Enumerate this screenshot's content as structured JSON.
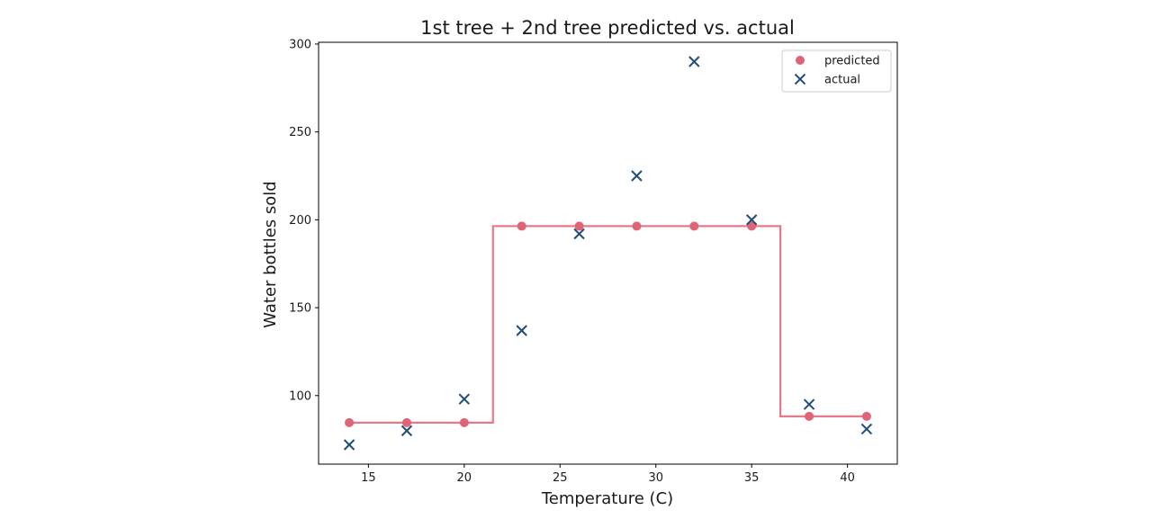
{
  "chart_data": {
    "type": "scatter",
    "title": "1st tree + 2nd tree predicted vs. actual",
    "xlabel": "Temperature (C)",
    "ylabel": "Water bottles sold",
    "xlim": [
      12.4,
      42.6
    ],
    "ylim": [
      61,
      301
    ],
    "x_ticks": [
      15,
      20,
      25,
      30,
      35,
      40
    ],
    "y_ticks": [
      100,
      150,
      200,
      250,
      300
    ],
    "grid": false,
    "legend_position": "top-right",
    "colors": {
      "predicted": "#e06377",
      "actual": "#1f4e79"
    },
    "series": [
      {
        "name": "predicted",
        "marker": "circle",
        "x": [
          14,
          17,
          20,
          23,
          26,
          29,
          32,
          35,
          38,
          41
        ],
        "y": [
          84.6,
          84.6,
          84.6,
          196.4,
          196.4,
          196.4,
          196.4,
          196.4,
          88.2,
          88.2
        ]
      },
      {
        "name": "actual",
        "marker": "x",
        "x": [
          14,
          17,
          20,
          23,
          26,
          29,
          32,
          35,
          38,
          41
        ],
        "y": [
          72,
          80,
          98,
          137,
          192,
          225,
          290,
          200,
          95,
          81
        ]
      }
    ],
    "step_line": {
      "x": [
        14,
        21.5,
        21.5,
        36.5,
        36.5,
        41
      ],
      "y": [
        84.6,
        84.6,
        196.4,
        196.4,
        88.2,
        88.2
      ]
    }
  }
}
